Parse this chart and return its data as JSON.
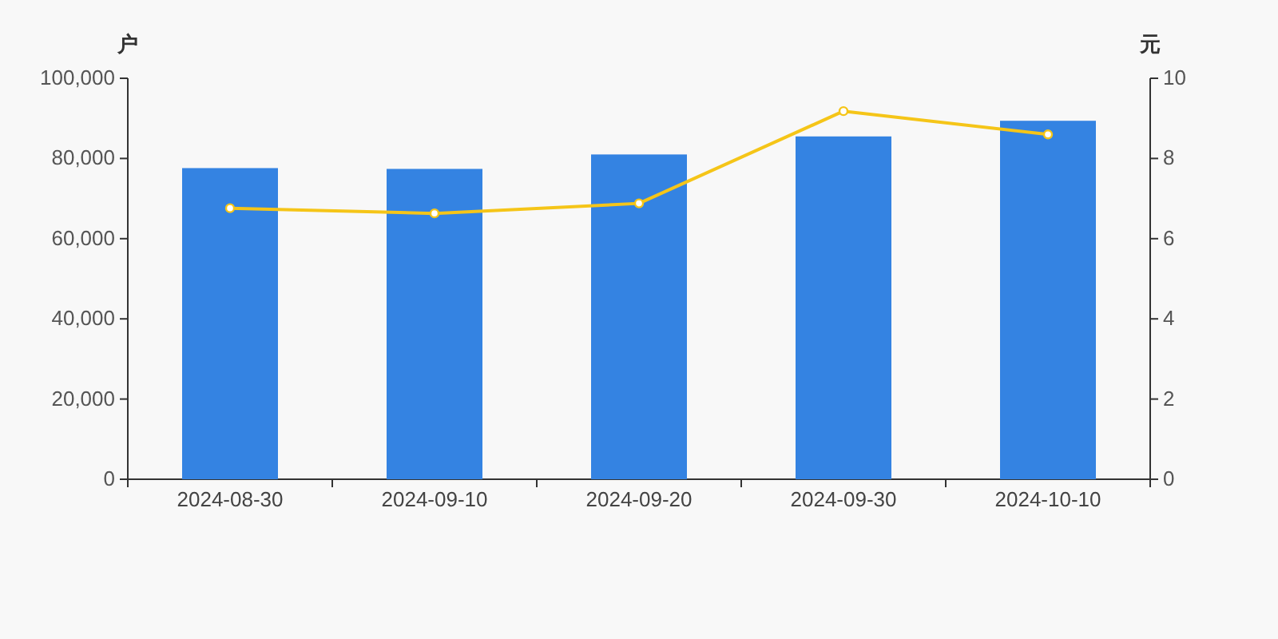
{
  "chart_data": {
    "type": "bar",
    "ylabel": "户",
    "y2label": "元",
    "categories": [
      "2024-08-30",
      "2024-09-10",
      "2024-09-20",
      "2024-09-30",
      "2024-10-10"
    ],
    "series": [
      {
        "color": "#3483e2",
        "values": [
          77600,
          77400,
          81000,
          85500,
          89400
        ]
      },
      {
        "type": "line",
        "axis": "y2",
        "color": "#f5c518",
        "marker": "circle",
        "values": [
          6.76,
          6.63,
          6.88,
          9.18,
          8.6
        ]
      }
    ],
    "ylim": [
      0,
      100000
    ],
    "yticks": [
      {
        "value": 0,
        "label": "0"
      },
      {
        "value": 20000,
        "label": "20,000"
      },
      {
        "value": 40000,
        "label": "40,000"
      },
      {
        "value": 60000,
        "label": "60,000"
      },
      {
        "value": 80000,
        "label": "80,000"
      },
      {
        "value": 100000,
        "label": "100,000"
      }
    ],
    "y2lim": [
      0,
      10
    ],
    "y2ticks": [
      0,
      2,
      4,
      6,
      8,
      10
    ],
    "grid": false
  }
}
